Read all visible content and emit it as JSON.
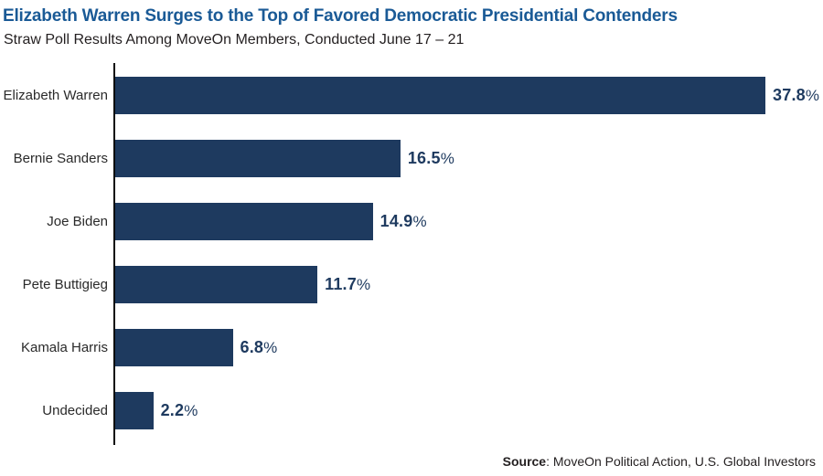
{
  "header": {
    "title": "Elizabeth Warren Surges to the Top of Favored Democratic Presidential Contenders",
    "subtitle": "Straw Poll Results Among MoveOn Members, Conducted June 17 – 21"
  },
  "chart_data": {
    "type": "bar",
    "orientation": "horizontal",
    "title": "Elizabeth Warren Surges to the Top of Favored Democratic Presidential Contenders",
    "subtitle": "Straw Poll Results Among MoveOn Members, Conducted June 17 – 21",
    "categories": [
      "Elizabeth Warren",
      "Bernie Sanders",
      "Joe Biden",
      "Pete Buttigieg",
      "Kamala Harris",
      "Undecided"
    ],
    "values": [
      37.8,
      16.5,
      14.9,
      11.7,
      6.8,
      2.2
    ],
    "value_labels": [
      "37.8%",
      "16.5%",
      "14.9%",
      "11.7%",
      "6.8%",
      "2.2%"
    ],
    "xlabel": "",
    "ylabel": "",
    "xlim": [
      0,
      40
    ],
    "grid": false,
    "legend": false,
    "bar_color": "#1e3a5f"
  },
  "footer": {
    "source_label": "Source",
    "source_text": ": MoveOn Political Action, U.S. Global Investors"
  },
  "colors": {
    "title_blue": "#1a5a96",
    "bar_navy": "#1e3a5f",
    "axis_black": "#0a0a0a",
    "text_dark": "#231f20"
  }
}
